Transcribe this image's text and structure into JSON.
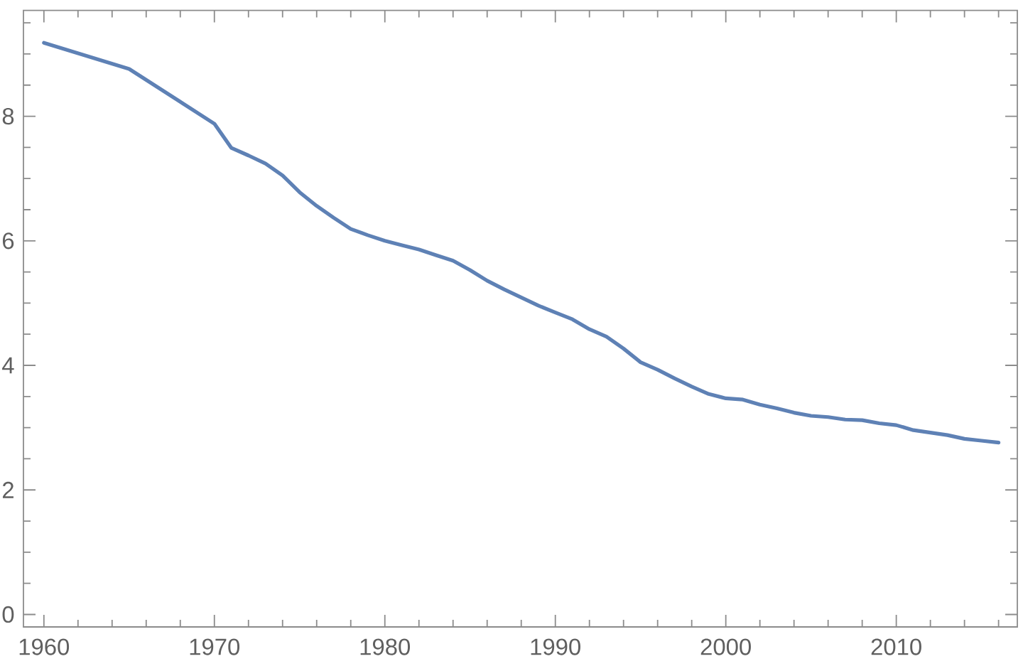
{
  "chart_data": {
    "type": "line",
    "x": [
      1960,
      1965,
      1970,
      1971,
      1972,
      1973,
      1974,
      1975,
      1976,
      1977,
      1978,
      1979,
      1980,
      1981,
      1982,
      1983,
      1984,
      1985,
      1986,
      1987,
      1988,
      1989,
      1990,
      1991,
      1992,
      1993,
      1994,
      1995,
      1996,
      1997,
      1998,
      1999,
      2000,
      2001,
      2002,
      2003,
      2004,
      2005,
      2006,
      2007,
      2008,
      2009,
      2010,
      2011,
      2012,
      2013,
      2014,
      2015,
      2016
    ],
    "series": [
      {
        "color": "#5e81b5",
        "values": [
          9.18,
          8.76,
          7.88,
          7.49,
          7.37,
          7.24,
          7.05,
          6.78,
          6.56,
          6.37,
          6.19,
          6.09,
          6.0,
          5.93,
          5.86,
          5.77,
          5.68,
          5.53,
          5.36,
          5.22,
          5.09,
          4.96,
          4.85,
          4.74,
          4.58,
          4.46,
          4.27,
          4.05,
          3.93,
          3.79,
          3.66,
          3.54,
          3.47,
          3.45,
          3.37,
          3.31,
          3.24,
          3.19,
          3.17,
          3.13,
          3.12,
          3.07,
          3.04,
          2.96,
          2.92,
          2.88,
          2.82,
          2.79,
          2.76
        ]
      }
    ],
    "xlim": [
      1958.8,
      2017.1
    ],
    "ylim": [
      -0.2,
      9.7
    ],
    "xticks": [
      1960,
      {
        "value": 1962,
        "label": null
      },
      {
        "value": 1964,
        "label": null
      },
      {
        "value": 1966,
        "label": null
      },
      {
        "value": 1968,
        "label": null
      },
      1970,
      {
        "value": 1972,
        "label": null
      },
      {
        "value": 1974,
        "label": null
      },
      {
        "value": 1976,
        "label": null
      },
      {
        "value": 1978,
        "label": null
      },
      1980,
      {
        "value": 1982,
        "label": null
      },
      {
        "value": 1984,
        "label": null
      },
      {
        "value": 1986,
        "label": null
      },
      {
        "value": 1988,
        "label": null
      },
      1990,
      {
        "value": 1992,
        "label": null
      },
      {
        "value": 1994,
        "label": null
      },
      {
        "value": 1996,
        "label": null
      },
      {
        "value": 1998,
        "label": null
      },
      2000,
      {
        "value": 2002,
        "label": null
      },
      {
        "value": 2004,
        "label": null
      },
      {
        "value": 2006,
        "label": null
      },
      {
        "value": 2008,
        "label": null
      },
      2010,
      {
        "value": 2012,
        "label": null
      },
      {
        "value": 2014,
        "label": null
      },
      {
        "value": 2016,
        "label": null
      }
    ],
    "yticks": [
      0,
      {
        "value": 0.5,
        "label": null
      },
      {
        "value": 1,
        "label": null
      },
      {
        "value": 1.5,
        "label": null
      },
      2,
      {
        "value": 2.5,
        "label": null
      },
      {
        "value": 3,
        "label": null
      },
      {
        "value": 3.5,
        "label": null
      },
      4,
      {
        "value": 4.5,
        "label": null
      },
      {
        "value": 5,
        "label": null
      },
      {
        "value": 5.5,
        "label": null
      },
      6,
      {
        "value": 6.5,
        "label": null
      },
      {
        "value": 7,
        "label": null
      },
      {
        "value": 7.5,
        "label": null
      },
      8,
      {
        "value": 8.5,
        "label": null
      },
      {
        "value": 9,
        "label": null
      },
      {
        "value": 9.5,
        "label": null
      }
    ],
    "line_style": "solid"
  }
}
